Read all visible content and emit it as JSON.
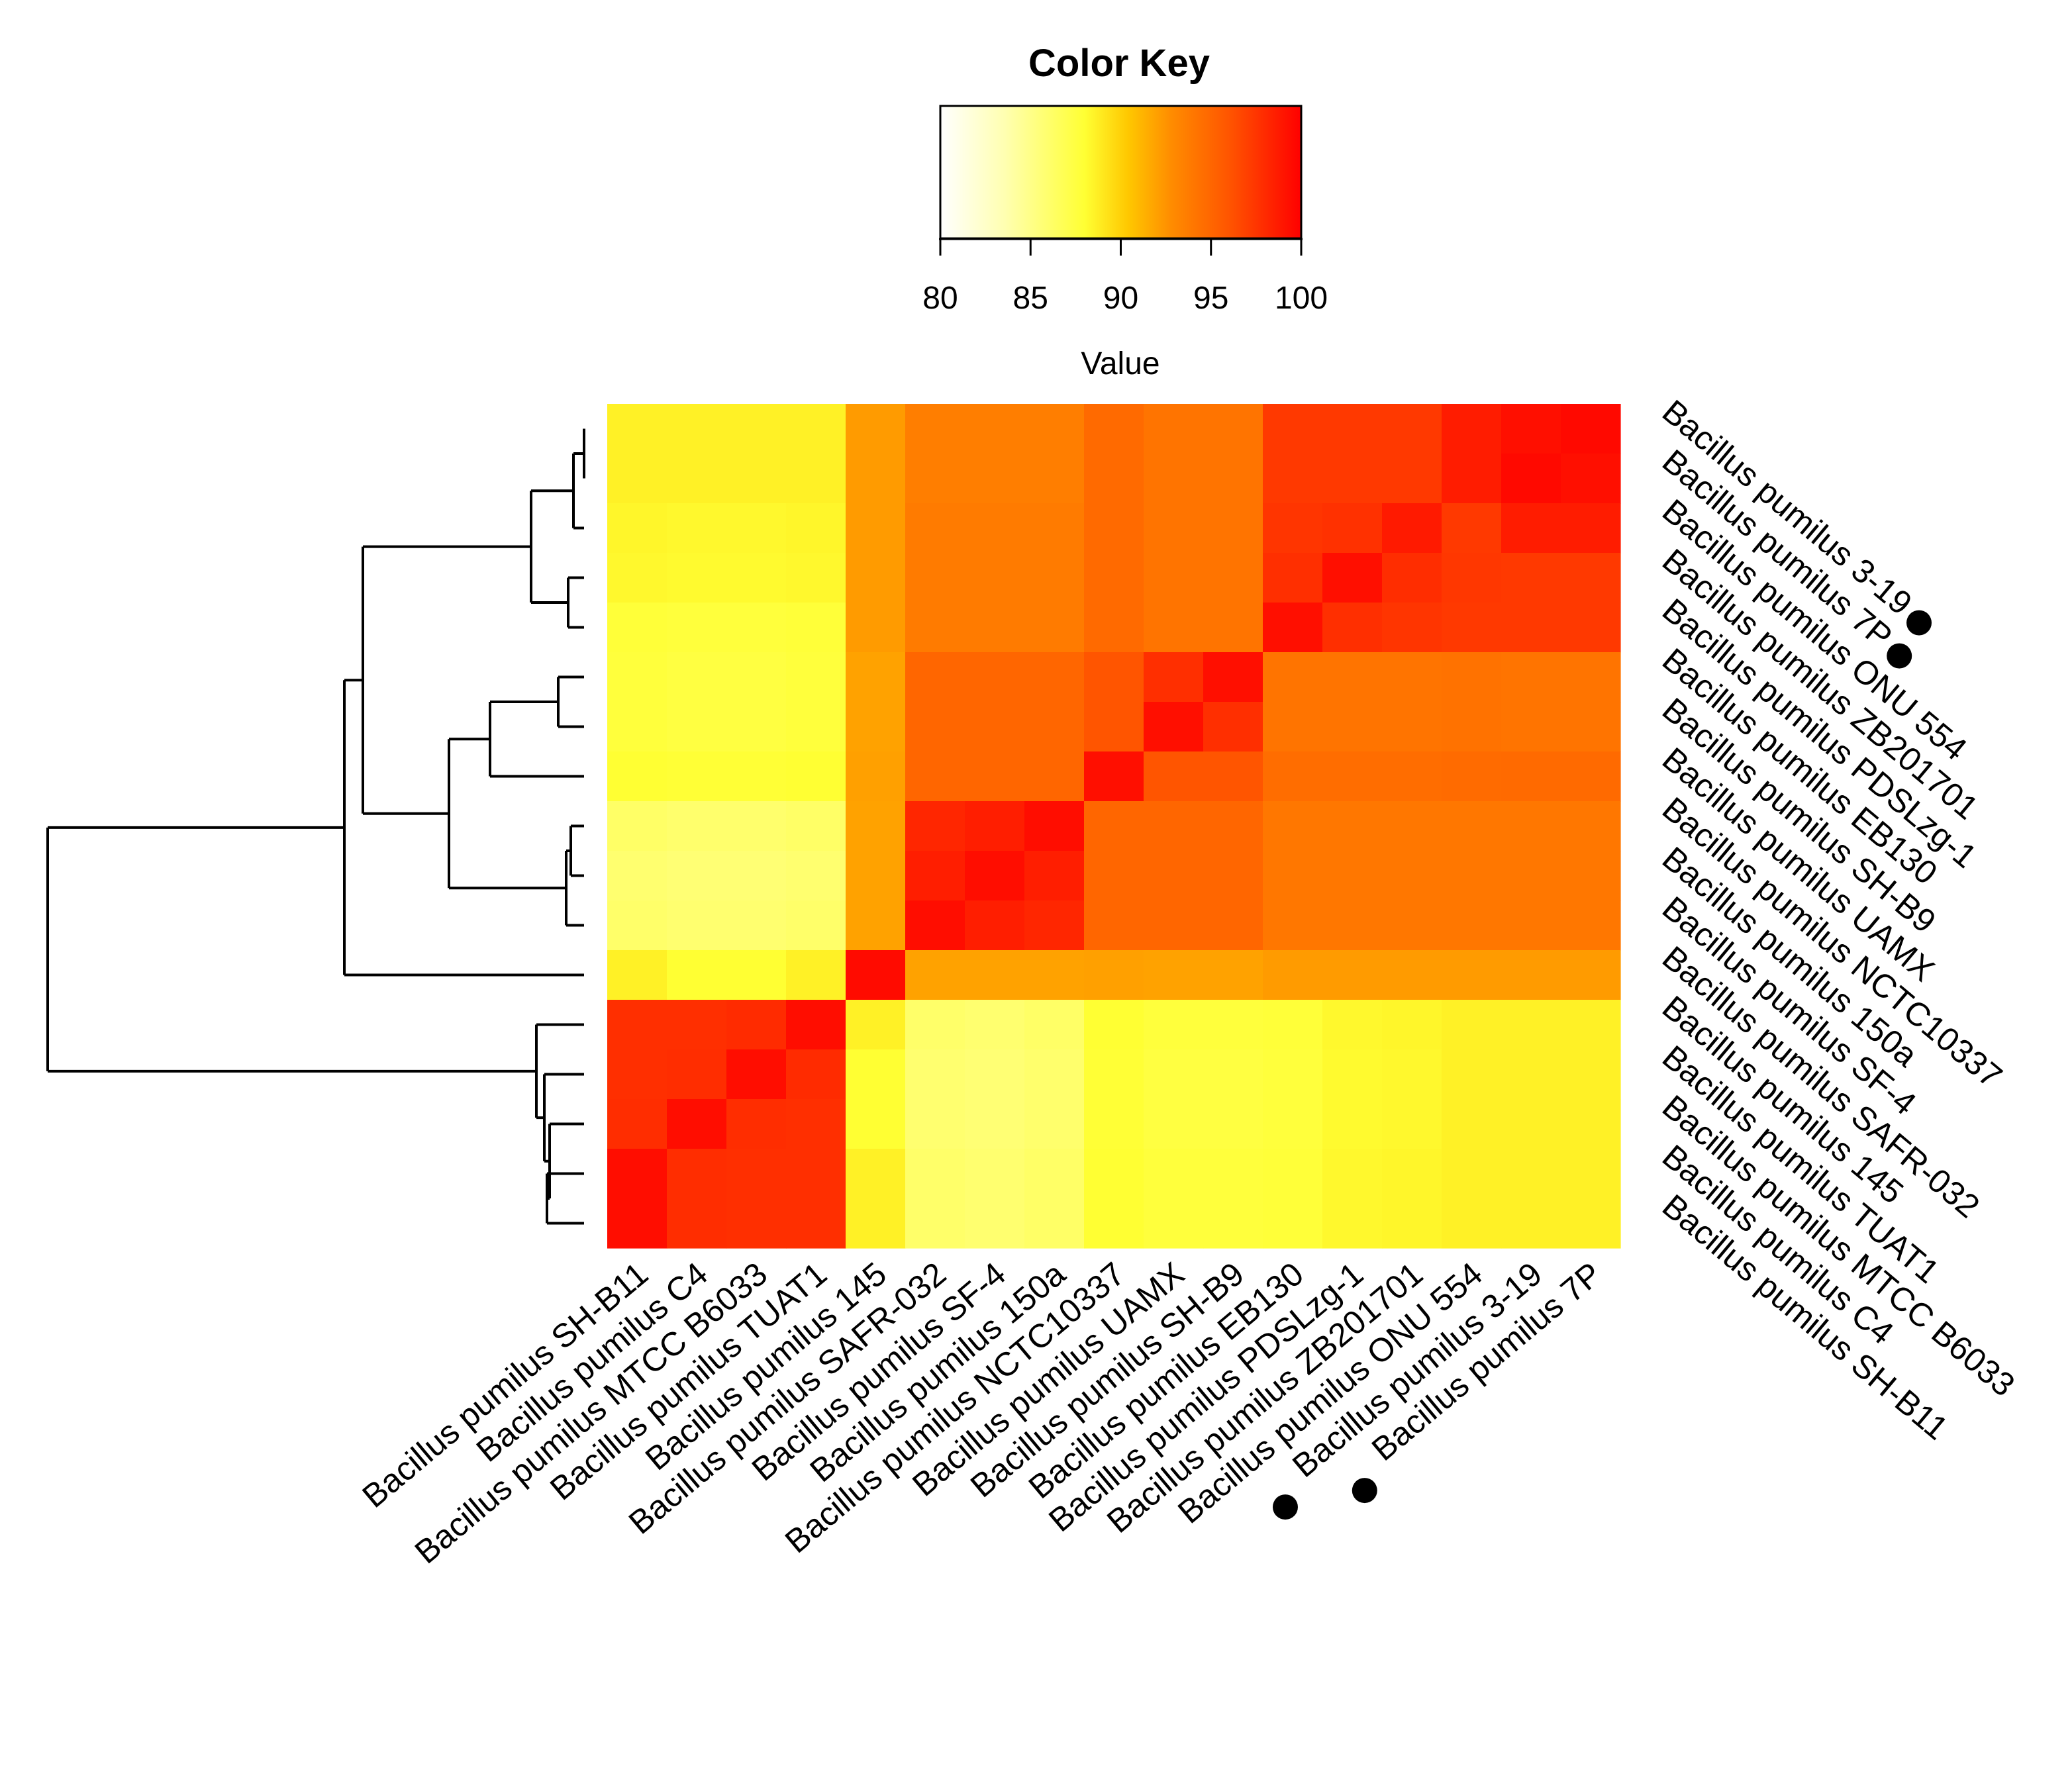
{
  "chart_data": {
    "type": "heatmap",
    "color_key": {
      "title": "Color Key",
      "xlabel": "Value",
      "ticks": [
        "80",
        "85",
        "90",
        "95",
        "100"
      ],
      "range": [
        80,
        100
      ],
      "colors": [
        "#ffffff",
        "#ffffb0",
        "#ffff33",
        "#ffc800",
        "#ff8c00",
        "#ff5500",
        "#ff0000"
      ]
    },
    "row_labels": [
      "Bacillus  pumilus 3-19",
      "Bacillus  pumilus 7P",
      "Bacillus  pumilus ONU 554",
      "Bacillus  pumilus ZB201701",
      "Bacillus  pumilus PDSLzg-1",
      "Bacillus  pumilus EB130",
      "Bacillus  pumilus SH-B9",
      "Bacillus  pumilus UAMX",
      "Bacillus  pumilus NCTC10337",
      "Bacillus  pumilus 150a",
      "Bacillus  pumilus SF-4",
      "Bacillus  pumilus SAFR-032",
      "Bacillus  pumilus 145",
      "Bacillus  pumilus TUAT1",
      "Bacillus  pumilus MTCC B6033",
      "Bacillus  pumilus C4",
      "Bacillus  pumilus SH-B11"
    ],
    "col_labels": [
      "Bacillus  pumilus SH-B11",
      "Bacillus  pumilus C4",
      "Bacillus  pumilus MTCC B6033",
      "Bacillus  pumilus TUAT1",
      "Bacillus  pumilus 145",
      "Bacillus  pumilus SAFR-032",
      "Bacillus  pumilus SF-4",
      "Bacillus  pumilus 150a",
      "Bacillus  pumilus NCTC10337",
      "Bacillus  pumilus UAMX",
      "Bacillus  pumilus SH-B9",
      "Bacillus  pumilus EB130",
      "Bacillus  pumilus PDSLzg-1",
      "Bacillus  pumilus ZB201701",
      "Bacillus  pumilus ONU 554",
      "Bacillus  pumilus 3-19",
      "Bacillus  pumilus 7P"
    ],
    "marked_strains": [
      "Bacillus  pumilus 3-19",
      "Bacillus  pumilus 7P"
    ],
    "values": [
      [
        88.6,
        88.6,
        88.6,
        88.6,
        92.2,
        93.6,
        93.6,
        93.6,
        94.8,
        94.2,
        94.2,
        97.3,
        97.3,
        97.3,
        98.7,
        99.3,
        99.6
      ],
      [
        88.6,
        88.6,
        88.6,
        88.6,
        92.2,
        93.6,
        93.6,
        93.6,
        94.8,
        94.2,
        94.2,
        97.3,
        97.3,
        97.3,
        98.7,
        99.6,
        99.3
      ],
      [
        88.4,
        88.3,
        88.3,
        88.4,
        92.2,
        93.8,
        93.8,
        93.8,
        94.8,
        94.2,
        94.2,
        97.5,
        97.7,
        98.8,
        97.3,
        98.7,
        98.7
      ],
      [
        88.3,
        88.2,
        88.2,
        88.3,
        92.2,
        93.8,
        93.8,
        93.8,
        94.8,
        94.2,
        94.2,
        97.8,
        99.3,
        97.9,
        97.4,
        97.3,
        97.3
      ],
      [
        87.8,
        87.7,
        87.7,
        87.8,
        92.2,
        93.8,
        93.8,
        93.8,
        94.8,
        94.2,
        94.2,
        99.3,
        97.8,
        97.5,
        97.3,
        97.3,
        97.3
      ],
      [
        87.7,
        87.5,
        87.5,
        87.7,
        91.9,
        95.0,
        95.0,
        95.0,
        96.0,
        97.8,
        99.3,
        94.2,
        94.2,
        94.2,
        94.3,
        94.2,
        94.2
      ],
      [
        87.7,
        87.5,
        87.5,
        87.7,
        91.9,
        95.0,
        95.0,
        95.0,
        96.0,
        99.3,
        97.8,
        94.2,
        94.2,
        94.2,
        94.3,
        94.2,
        94.2
      ],
      [
        88.0,
        87.9,
        87.9,
        88.0,
        92.0,
        95.0,
        95.0,
        95.0,
        99.3,
        96.0,
        96.0,
        94.6,
        94.6,
        94.6,
        94.7,
        94.8,
        94.8
      ],
      [
        86.2,
        86.0,
        86.0,
        86.2,
        91.9,
        98.2,
        98.6,
        99.4,
        95.0,
        95.0,
        95.0,
        94.0,
        94.0,
        94.0,
        94.0,
        94.0,
        94.0
      ],
      [
        85.9,
        85.7,
        85.7,
        85.9,
        91.9,
        98.6,
        99.4,
        98.6,
        95.0,
        95.0,
        95.0,
        94.0,
        94.0,
        94.0,
        94.0,
        94.0,
        94.0
      ],
      [
        86.1,
        85.9,
        85.9,
        86.1,
        91.9,
        99.4,
        98.6,
        98.2,
        95.0,
        95.0,
        95.0,
        94.0,
        94.0,
        94.0,
        94.0,
        94.0,
        94.0
      ],
      [
        88.6,
        88.0,
        88.0,
        88.6,
        99.5,
        91.9,
        91.9,
        91.9,
        92.0,
        91.9,
        91.9,
        92.2,
        92.2,
        92.2,
        92.2,
        92.2,
        92.2
      ],
      [
        97.8,
        97.8,
        98.0,
        99.4,
        88.6,
        86.1,
        85.9,
        86.2,
        88.0,
        87.7,
        87.7,
        87.8,
        88.3,
        88.4,
        88.6,
        88.6,
        88.6
      ],
      [
        97.8,
        97.9,
        99.4,
        98.0,
        88.0,
        85.9,
        85.7,
        86.0,
        87.9,
        87.5,
        87.5,
        87.7,
        88.2,
        88.3,
        88.6,
        88.6,
        88.6
      ],
      [
        97.9,
        99.4,
        97.9,
        97.8,
        88.0,
        85.9,
        85.7,
        86.0,
        87.9,
        87.5,
        87.5,
        87.7,
        88.2,
        88.3,
        88.6,
        88.6,
        88.6
      ],
      [
        99.4,
        97.9,
        97.8,
        97.8,
        88.6,
        86.1,
        85.9,
        86.2,
        88.0,
        87.7,
        87.7,
        87.8,
        88.3,
        88.4,
        88.6,
        88.6,
        88.6
      ],
      [
        99.4,
        97.9,
        97.8,
        97.8,
        88.6,
        86.1,
        85.9,
        86.2,
        88.0,
        87.7,
        87.7,
        87.8,
        88.3,
        88.4,
        88.6,
        88.6,
        88.6
      ]
    ]
  }
}
